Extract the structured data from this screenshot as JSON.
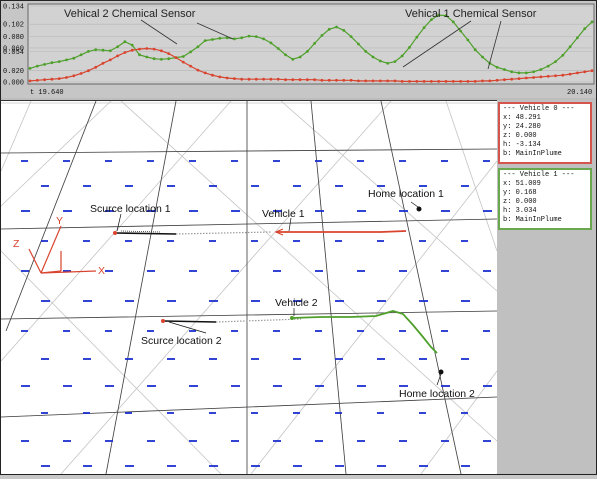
{
  "chart": {
    "y_ticks": [
      "0.134",
      "0.102",
      "0.080",
      "0.060",
      "0.054",
      "0.020",
      "0.000"
    ],
    "x_start": "t 19.640",
    "x_end": "20.140",
    "annotation_vehicle2": "Vehical 2 Chemical Sensor",
    "annotation_vehicle1": "Vehical 1 Chemical Sensor",
    "series": [
      {
        "name": "Vehicle 2",
        "color": "#4fa02b",
        "values": [
          0.024,
          0.028,
          0.031,
          0.034,
          0.036,
          0.039,
          0.042,
          0.048,
          0.054,
          0.057,
          0.056,
          0.055,
          0.062,
          0.071,
          0.065,
          0.048,
          0.044,
          0.041,
          0.04,
          0.041,
          0.043,
          0.045,
          0.053,
          0.062,
          0.073,
          0.075,
          0.077,
          0.078,
          0.076,
          0.078,
          0.081,
          0.08,
          0.076,
          0.069,
          0.059,
          0.048,
          0.04,
          0.044,
          0.054,
          0.068,
          0.082,
          0.093,
          0.097,
          0.091,
          0.08,
          0.067,
          0.054,
          0.044,
          0.037,
          0.033,
          0.036,
          0.046,
          0.061,
          0.079,
          0.096,
          0.11,
          0.118,
          0.117,
          0.106,
          0.09,
          0.074,
          0.057,
          0.044,
          0.033,
          0.026,
          0.022,
          0.018,
          0.016,
          0.016,
          0.018,
          0.022,
          0.028,
          0.036,
          0.047,
          0.062,
          0.078,
          0.094,
          0.106
        ]
      },
      {
        "name": "Vehicle 1",
        "color": "#d9442f",
        "values": [
          0.002,
          0.003,
          0.004,
          0.005,
          0.006,
          0.008,
          0.011,
          0.015,
          0.02,
          0.026,
          0.033,
          0.039,
          0.046,
          0.052,
          0.056,
          0.058,
          0.059,
          0.058,
          0.055,
          0.05,
          0.043,
          0.035,
          0.028,
          0.021,
          0.016,
          0.012,
          0.009,
          0.007,
          0.006,
          0.005,
          0.005,
          0.005,
          0.005,
          0.005,
          0.005,
          0.004,
          0.004,
          0.004,
          0.004,
          0.004,
          0.003,
          0.003,
          0.003,
          0.003,
          0.003,
          0.002,
          0.002,
          0.002,
          0.002,
          0.002,
          0.002,
          0.001,
          0.001,
          0.001,
          0.001,
          0.001,
          0.001,
          0.001,
          0.001,
          0.001,
          0.001,
          0.001,
          0.002,
          0.002,
          0.003,
          0.004,
          0.005,
          0.006,
          0.007,
          0.008,
          0.009,
          0.01,
          0.011,
          0.012,
          0.014,
          0.016,
          0.018,
          0.02
        ]
      }
    ]
  },
  "scene": {
    "source1": "Scurce location 1",
    "source2": "Scurce location 2",
    "vehicle1": "Vehicle 1",
    "vehicle2": "Vehicle 2",
    "home1": "Home location 1",
    "home2": "Home location 2",
    "axis_x": "X",
    "axis_y": "Y",
    "axis_z": "Z"
  },
  "panels": [
    {
      "header": "--- Vehicle 0 ---",
      "x": "x: 48.291",
      "y": "y: 24.280",
      "z": "z: 0.000",
      "h": "h: -3.134",
      "b": "b: MainInPlume",
      "color": "#d3554e"
    },
    {
      "header": "--- Vehicle 1 ---",
      "x": "x: 51.009",
      "y": "y: 0.168",
      "z": "z: 0.000",
      "h": "h: 3.034",
      "b": "b: MainInPlume",
      "color": "#6aa84f"
    }
  ]
}
